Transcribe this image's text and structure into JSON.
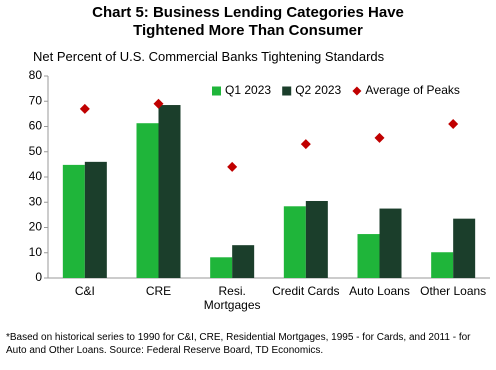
{
  "chart_data": {
    "type": "bar",
    "title": "Chart 5: Business Lending Categories Have Tightened More Than Consumer",
    "subtitle": "Net Percent of U.S. Commercial Banks Tightening Standards",
    "footnote": "*Based on historical series to 1990 for C&I, CRE, Residential Mortgages, 1995 - for Cards, and 2011 - for Auto and Other Loans. Source: Federal Reserve Board, TD Economics.",
    "categories": [
      "C&I",
      "CRE",
      "Resi. Mortgages",
      "Credit Cards",
      "Auto Loans",
      "Other Loans"
    ],
    "series": [
      {
        "name": "Q1 2023",
        "color": "#1fb53a",
        "marker": "bar",
        "values": [
          44.8,
          61.3,
          8.2,
          28.4,
          17.4,
          10.2
        ]
      },
      {
        "name": "Q2 2023",
        "color": "#1b3e2b",
        "marker": "bar",
        "values": [
          46,
          68.5,
          13,
          30.5,
          27.5,
          23.5
        ]
      },
      {
        "name": "Average of Peaks",
        "color": "#c00000",
        "marker": "diamond",
        "values": [
          67,
          69,
          44,
          53,
          55.5,
          61
        ]
      }
    ],
    "ylim": [
      0,
      80
    ],
    "yticks": [
      0,
      10,
      20,
      30,
      40,
      50,
      60,
      70,
      80
    ],
    "legend": "top-right"
  }
}
